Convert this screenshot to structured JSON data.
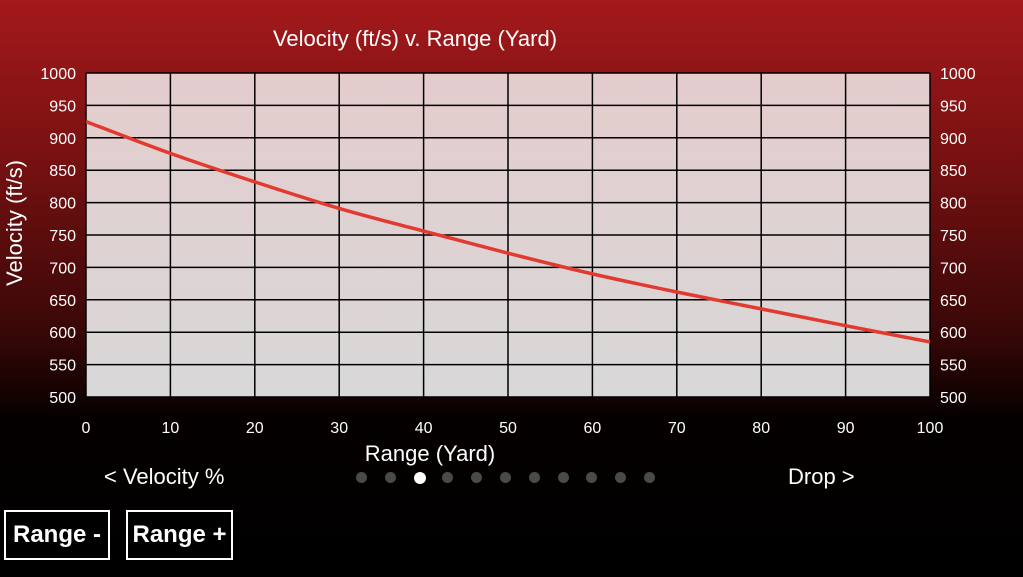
{
  "chart_data": {
    "type": "line",
    "title": "Velocity (ft/s) v. Range (Yard)",
    "xlabel": "Range (Yard)",
    "ylabel": "Velocity (ft/s)",
    "xlim": [
      0,
      100
    ],
    "ylim": [
      500,
      1000
    ],
    "x_ticks": [
      0,
      10,
      20,
      30,
      40,
      50,
      60,
      70,
      80,
      90,
      100
    ],
    "y_ticks": [
      500,
      550,
      600,
      650,
      700,
      750,
      800,
      850,
      900,
      950,
      1000
    ],
    "grid": true,
    "right_axis_labels": true,
    "line_color": "#e23a2e",
    "series": [
      {
        "x": [
          0,
          10,
          20,
          30,
          40,
          50,
          60,
          70,
          80,
          90,
          100
        ],
        "values": [
          925,
          876,
          832,
          791,
          756,
          722,
          690,
          662,
          636,
          610,
          585
        ]
      }
    ]
  },
  "navigation": {
    "prev_label": "< Velocity %",
    "next_label": "Drop >",
    "page_count": 11,
    "active_page": 3
  },
  "buttons": {
    "range_minus": "Range -",
    "range_plus": "Range +"
  }
}
